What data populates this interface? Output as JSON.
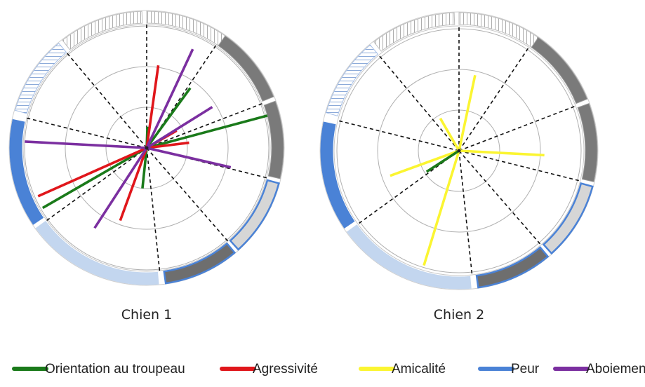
{
  "chart_data": {
    "type": "radial-line",
    "legend": [
      {
        "key": "orientation",
        "label": "Orientation au troupeau",
        "color": "#1a7a1a"
      },
      {
        "key": "agressivite",
        "label": "Agressivité",
        "color": "#e0161b"
      },
      {
        "key": "amicalite",
        "label": "Amicalité",
        "color": "#fbf531"
      },
      {
        "key": "peur",
        "label": "Peur",
        "color": "#4a82d6"
      },
      {
        "key": "aboiement",
        "label": "Aboiement",
        "color": "#7b2fa0"
      }
    ],
    "legend_position": "bottom",
    "rim_sectors": [
      {
        "style": "hatched-gray",
        "start": 0,
        "end": 35
      },
      {
        "style": "solid-dark-gray",
        "start": 35,
        "end": 68
      },
      {
        "style": "solid-dark-gray",
        "start": 70,
        "end": 103
      },
      {
        "style": "light-gray-blue-border",
        "start": 105,
        "end": 138
      },
      {
        "style": "dark-gray-blue-border",
        "start": 140,
        "end": 172
      },
      {
        "style": "light-blue",
        "start": 175,
        "end": 234
      },
      {
        "style": "solid-blue",
        "start": 236,
        "end": 282
      },
      {
        "style": "hatched-blue",
        "start": 286,
        "end": 320
      },
      {
        "style": "hatched-gray",
        "start": 322,
        "end": 358
      }
    ],
    "dashed_spokes": [
      0,
      34,
      69,
      104,
      139,
      174,
      234,
      284,
      320
    ],
    "rings": [
      1,
      2,
      3
    ],
    "charts": [
      {
        "caption": "Chien 1",
        "segments": [
          {
            "series": "orientation",
            "angle": 2,
            "length": 0.52
          },
          {
            "series": "orientation",
            "angle": 36,
            "length": 1.82
          },
          {
            "series": "orientation",
            "angle": 75,
            "length": 3.07
          },
          {
            "series": "orientation",
            "angle": 186,
            "length": 1.0
          },
          {
            "series": "orientation",
            "angle": 240,
            "length": 2.95
          },
          {
            "series": "agressivite",
            "angle": 8,
            "length": 2.05
          },
          {
            "series": "agressivite",
            "angle": 60,
            "length": 0.85
          },
          {
            "series": "agressivite",
            "angle": 83,
            "length": 1.05
          },
          {
            "series": "agressivite",
            "angle": 200,
            "length": 1.9
          },
          {
            "series": "agressivite",
            "angle": 246,
            "length": 2.92
          },
          {
            "series": "aboiement",
            "angle": 25,
            "length": 2.68
          },
          {
            "series": "aboiement",
            "angle": 58,
            "length": 1.9
          },
          {
            "series": "aboiement",
            "angle": 103,
            "length": 2.12
          },
          {
            "series": "aboiement",
            "angle": 213,
            "length": 2.35
          },
          {
            "series": "aboiement",
            "angle": 273,
            "length": 3.0
          }
        ]
      },
      {
        "caption": "Chien 2",
        "segments": [
          {
            "series": "amicalite",
            "angle": 12,
            "length": 1.9
          },
          {
            "series": "amicalite",
            "angle": 93,
            "length": 2.1
          },
          {
            "series": "amicalite",
            "angle": 197,
            "length": 2.95
          },
          {
            "series": "amicalite",
            "angle": 250,
            "length": 1.8
          },
          {
            "series": "amicalite",
            "angle": 330,
            "length": 0.92
          },
          {
            "series": "orientation",
            "angle": 237,
            "length": 0.95
          }
        ]
      }
    ]
  }
}
